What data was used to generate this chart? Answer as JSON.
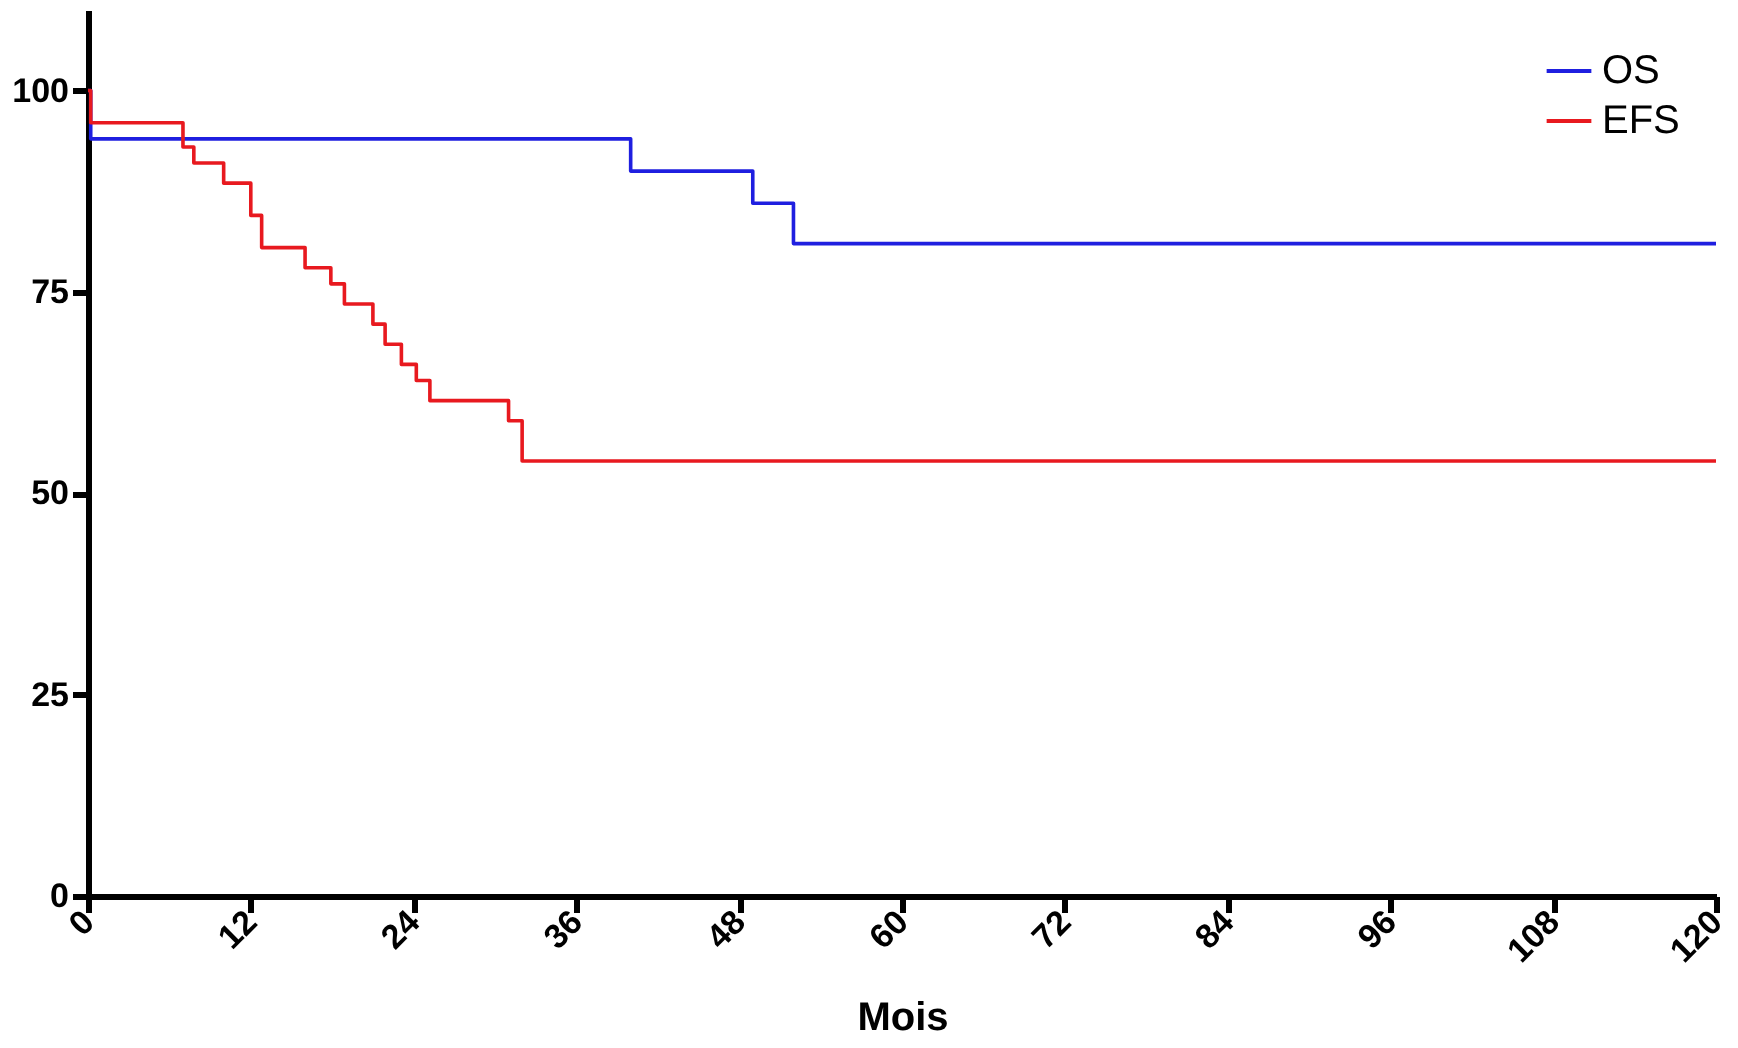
{
  "chart_data": {
    "type": "step",
    "xlabel": "Mois",
    "legend": "top right",
    "grid": false,
    "line_style": "solid",
    "xlim": [
      0,
      120
    ],
    "xticks": [
      0,
      12,
      24,
      36,
      48,
      60,
      72,
      84,
      96,
      108,
      120
    ],
    "ylim": [
      0,
      110
    ],
    "yticks": [
      0,
      25,
      50,
      75,
      100
    ],
    "series": [
      {
        "name": "OS",
        "color": "#1f1fe0",
        "x": [
          0,
          0.2,
          40,
          49,
          52,
          120
        ],
        "values": [
          100,
          94,
          90,
          86,
          81,
          81
        ]
      },
      {
        "name": "EFS",
        "color": "#e8191f",
        "x": [
          0,
          0.2,
          7,
          7.8,
          10,
          12,
          12.8,
          16,
          17.9,
          18.9,
          21,
          21.9,
          23.1,
          24.2,
          25.2,
          31,
          32,
          120
        ],
        "values": [
          100,
          96,
          93,
          91,
          88.5,
          84.5,
          80.5,
          78,
          76,
          73.5,
          71,
          68.5,
          66,
          64,
          61.5,
          59,
          54,
          54
        ]
      }
    ]
  }
}
